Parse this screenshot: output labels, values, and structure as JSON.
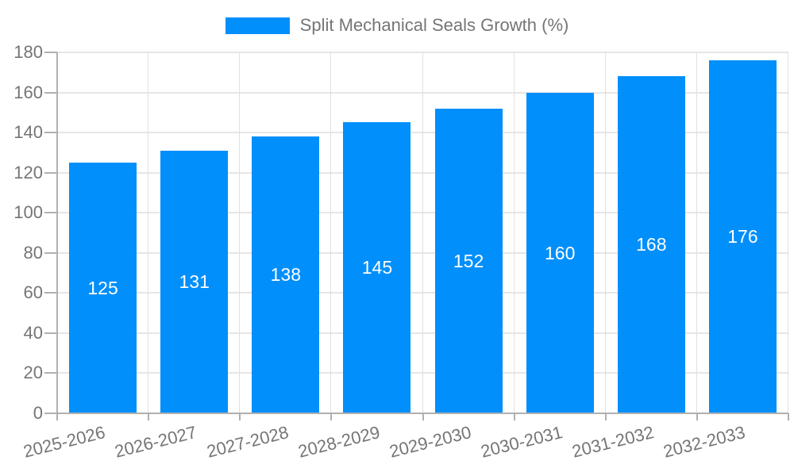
{
  "legend": {
    "label": "Split Mechanical Seals Growth (%)"
  },
  "chart_data": {
    "type": "bar",
    "title": "Split Mechanical Seals Growth (%)",
    "categories": [
      "2025-2026",
      "2026-2027",
      "2027-2028",
      "2028-2029",
      "2029-2030",
      "2030-2031",
      "2031-2032",
      "2032-2033"
    ],
    "series": [
      {
        "name": "Split Mechanical Seals Growth (%)",
        "values": [
          125,
          131,
          138,
          145,
          152,
          160,
          168,
          176
        ]
      }
    ],
    "values": [
      125,
      131,
      138,
      145,
      152,
      160,
      168,
      176
    ],
    "bar_value_labels": [
      "125",
      "131",
      "138",
      "145",
      "152",
      "160",
      "168",
      "176"
    ],
    "xlabel": "",
    "ylabel": "",
    "ylim": [
      0,
      180
    ],
    "yticks": [
      0,
      20,
      40,
      60,
      80,
      100,
      120,
      140,
      160,
      180
    ],
    "grid": true,
    "legend_position": "top",
    "x_label_rotation_deg": -14
  },
  "colors": {
    "bar": "#008ffb",
    "bar_label": "#ffffff",
    "axis_text": "#757575",
    "legend_text": "#757575",
    "grid_horizontal": "#e6e6e6",
    "grid_vertical": "#e0e0e0",
    "axis_line": "#b0b0b0",
    "background": "#ffffff"
  }
}
